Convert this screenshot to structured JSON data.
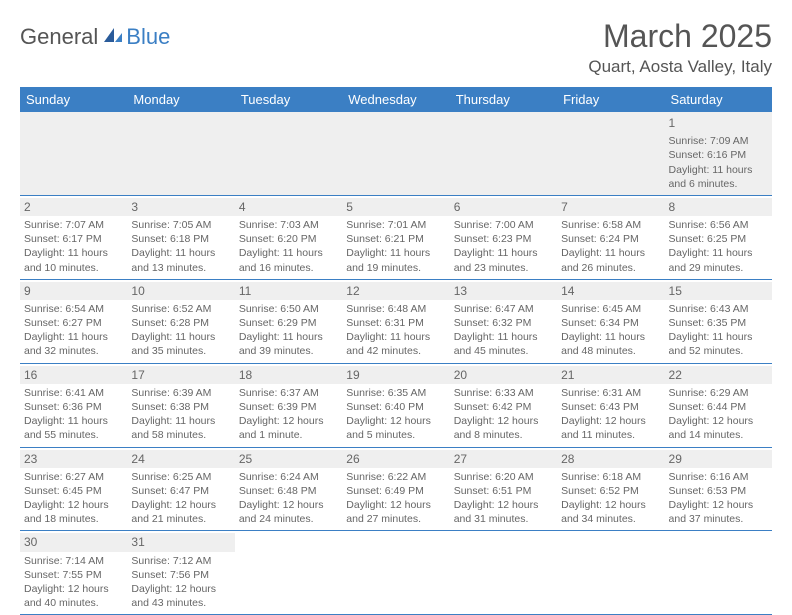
{
  "logo": {
    "text_general": "General",
    "text_blue": "Blue"
  },
  "title": "March 2025",
  "location": "Quart, Aosta Valley, Italy",
  "colors": {
    "header_bg": "#3b7fc4",
    "header_text": "#ffffff",
    "stripe_bg": "#efefef",
    "border": "#3b7fc4",
    "body_text": "#666666"
  },
  "day_headers": [
    "Sunday",
    "Monday",
    "Tuesday",
    "Wednesday",
    "Thursday",
    "Friday",
    "Saturday"
  ],
  "weeks": [
    [
      null,
      null,
      null,
      null,
      null,
      null,
      {
        "n": "1",
        "sr": "Sunrise: 7:09 AM",
        "ss": "Sunset: 6:16 PM",
        "dl": "Daylight: 11 hours and 6 minutes."
      }
    ],
    [
      {
        "n": "2",
        "sr": "Sunrise: 7:07 AM",
        "ss": "Sunset: 6:17 PM",
        "dl": "Daylight: 11 hours and 10 minutes."
      },
      {
        "n": "3",
        "sr": "Sunrise: 7:05 AM",
        "ss": "Sunset: 6:18 PM",
        "dl": "Daylight: 11 hours and 13 minutes."
      },
      {
        "n": "4",
        "sr": "Sunrise: 7:03 AM",
        "ss": "Sunset: 6:20 PM",
        "dl": "Daylight: 11 hours and 16 minutes."
      },
      {
        "n": "5",
        "sr": "Sunrise: 7:01 AM",
        "ss": "Sunset: 6:21 PM",
        "dl": "Daylight: 11 hours and 19 minutes."
      },
      {
        "n": "6",
        "sr": "Sunrise: 7:00 AM",
        "ss": "Sunset: 6:23 PM",
        "dl": "Daylight: 11 hours and 23 minutes."
      },
      {
        "n": "7",
        "sr": "Sunrise: 6:58 AM",
        "ss": "Sunset: 6:24 PM",
        "dl": "Daylight: 11 hours and 26 minutes."
      },
      {
        "n": "8",
        "sr": "Sunrise: 6:56 AM",
        "ss": "Sunset: 6:25 PM",
        "dl": "Daylight: 11 hours and 29 minutes."
      }
    ],
    [
      {
        "n": "9",
        "sr": "Sunrise: 6:54 AM",
        "ss": "Sunset: 6:27 PM",
        "dl": "Daylight: 11 hours and 32 minutes."
      },
      {
        "n": "10",
        "sr": "Sunrise: 6:52 AM",
        "ss": "Sunset: 6:28 PM",
        "dl": "Daylight: 11 hours and 35 minutes."
      },
      {
        "n": "11",
        "sr": "Sunrise: 6:50 AM",
        "ss": "Sunset: 6:29 PM",
        "dl": "Daylight: 11 hours and 39 minutes."
      },
      {
        "n": "12",
        "sr": "Sunrise: 6:48 AM",
        "ss": "Sunset: 6:31 PM",
        "dl": "Daylight: 11 hours and 42 minutes."
      },
      {
        "n": "13",
        "sr": "Sunrise: 6:47 AM",
        "ss": "Sunset: 6:32 PM",
        "dl": "Daylight: 11 hours and 45 minutes."
      },
      {
        "n": "14",
        "sr": "Sunrise: 6:45 AM",
        "ss": "Sunset: 6:34 PM",
        "dl": "Daylight: 11 hours and 48 minutes."
      },
      {
        "n": "15",
        "sr": "Sunrise: 6:43 AM",
        "ss": "Sunset: 6:35 PM",
        "dl": "Daylight: 11 hours and 52 minutes."
      }
    ],
    [
      {
        "n": "16",
        "sr": "Sunrise: 6:41 AM",
        "ss": "Sunset: 6:36 PM",
        "dl": "Daylight: 11 hours and 55 minutes."
      },
      {
        "n": "17",
        "sr": "Sunrise: 6:39 AM",
        "ss": "Sunset: 6:38 PM",
        "dl": "Daylight: 11 hours and 58 minutes."
      },
      {
        "n": "18",
        "sr": "Sunrise: 6:37 AM",
        "ss": "Sunset: 6:39 PM",
        "dl": "Daylight: 12 hours and 1 minute."
      },
      {
        "n": "19",
        "sr": "Sunrise: 6:35 AM",
        "ss": "Sunset: 6:40 PM",
        "dl": "Daylight: 12 hours and 5 minutes."
      },
      {
        "n": "20",
        "sr": "Sunrise: 6:33 AM",
        "ss": "Sunset: 6:42 PM",
        "dl": "Daylight: 12 hours and 8 minutes."
      },
      {
        "n": "21",
        "sr": "Sunrise: 6:31 AM",
        "ss": "Sunset: 6:43 PM",
        "dl": "Daylight: 12 hours and 11 minutes."
      },
      {
        "n": "22",
        "sr": "Sunrise: 6:29 AM",
        "ss": "Sunset: 6:44 PM",
        "dl": "Daylight: 12 hours and 14 minutes."
      }
    ],
    [
      {
        "n": "23",
        "sr": "Sunrise: 6:27 AM",
        "ss": "Sunset: 6:45 PM",
        "dl": "Daylight: 12 hours and 18 minutes."
      },
      {
        "n": "24",
        "sr": "Sunrise: 6:25 AM",
        "ss": "Sunset: 6:47 PM",
        "dl": "Daylight: 12 hours and 21 minutes."
      },
      {
        "n": "25",
        "sr": "Sunrise: 6:24 AM",
        "ss": "Sunset: 6:48 PM",
        "dl": "Daylight: 12 hours and 24 minutes."
      },
      {
        "n": "26",
        "sr": "Sunrise: 6:22 AM",
        "ss": "Sunset: 6:49 PM",
        "dl": "Daylight: 12 hours and 27 minutes."
      },
      {
        "n": "27",
        "sr": "Sunrise: 6:20 AM",
        "ss": "Sunset: 6:51 PM",
        "dl": "Daylight: 12 hours and 31 minutes."
      },
      {
        "n": "28",
        "sr": "Sunrise: 6:18 AM",
        "ss": "Sunset: 6:52 PM",
        "dl": "Daylight: 12 hours and 34 minutes."
      },
      {
        "n": "29",
        "sr": "Sunrise: 6:16 AM",
        "ss": "Sunset: 6:53 PM",
        "dl": "Daylight: 12 hours and 37 minutes."
      }
    ],
    [
      {
        "n": "30",
        "sr": "Sunrise: 7:14 AM",
        "ss": "Sunset: 7:55 PM",
        "dl": "Daylight: 12 hours and 40 minutes."
      },
      {
        "n": "31",
        "sr": "Sunrise: 7:12 AM",
        "ss": "Sunset: 7:56 PM",
        "dl": "Daylight: 12 hours and 43 minutes."
      },
      null,
      null,
      null,
      null,
      null
    ]
  ]
}
